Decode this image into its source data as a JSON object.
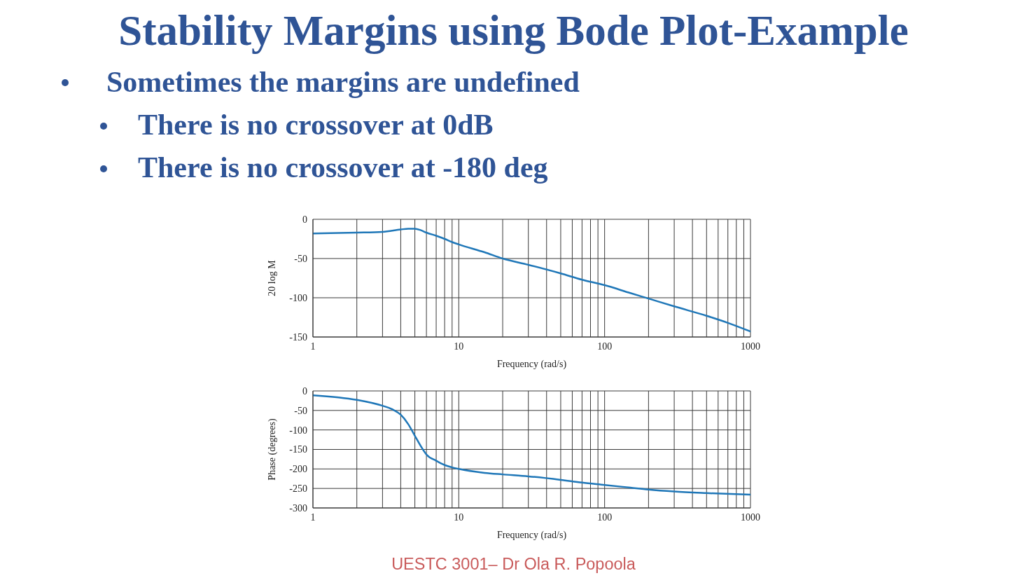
{
  "chart_data": [
    {
      "type": "line",
      "title": "Stability Margins using Bode Plot-Example",
      "annotations": [
        "Sometimes the margins are undefined",
        "There is no crossover at 0dB",
        "There is no crossover at -180 deg"
      ],
      "xlabel": "Frequency (rad/s)",
      "ylabel": "20 log M",
      "log": "x",
      "grid": true,
      "xlim": [
        1,
        1000
      ],
      "xticks": [
        1,
        {
          "value": 2,
          "label": null
        },
        {
          "value": 3,
          "label": null
        },
        {
          "value": 4,
          "label": null
        },
        {
          "value": 5,
          "label": null
        },
        {
          "value": 6,
          "label": null
        },
        {
          "value": 7,
          "label": null
        },
        {
          "value": 8,
          "label": null
        },
        {
          "value": 9,
          "label": null
        },
        10,
        {
          "value": 20,
          "label": null
        },
        {
          "value": 30,
          "label": null
        },
        {
          "value": 40,
          "label": null
        },
        {
          "value": 50,
          "label": null
        },
        {
          "value": 60,
          "label": null
        },
        {
          "value": 70,
          "label": null
        },
        {
          "value": 80,
          "label": null
        },
        {
          "value": 90,
          "label": null
        },
        100,
        {
          "value": 200,
          "label": null
        },
        {
          "value": 300,
          "label": null
        },
        {
          "value": 400,
          "label": null
        },
        {
          "value": 500,
          "label": null
        },
        {
          "value": 600,
          "label": null
        },
        {
          "value": 700,
          "label": null
        },
        {
          "value": 800,
          "label": null
        },
        {
          "value": 900,
          "label": null
        },
        1000
      ],
      "ylim": [
        -150,
        0
      ],
      "yticks": [
        -150,
        -100,
        -50,
        0
      ],
      "x": [
        1,
        2,
        3,
        4,
        4.5,
        5,
        5.5,
        6,
        7,
        8,
        9,
        10,
        15,
        20,
        30,
        50,
        70,
        100,
        150,
        200,
        300,
        500,
        700,
        1000
      ],
      "values": [
        -18,
        -17,
        -16,
        -13,
        -12,
        -12,
        -14,
        -17,
        -21,
        -25,
        -29,
        -32,
        -42,
        -50,
        -58,
        -69,
        -77,
        -84,
        -94,
        -101,
        -111,
        -123,
        -132,
        -143
      ],
      "color": "#1f77b8"
    },
    {
      "type": "line",
      "annotations": [
        "UESTC 3001– Dr Ola R. Popoola"
      ],
      "xlabel": "Frequency (rad/s)",
      "ylabel": "Phase (degrees)",
      "log": "x",
      "grid": true,
      "xlim": [
        1,
        1000
      ],
      "xticks": [
        1,
        {
          "value": 2,
          "label": null
        },
        {
          "value": 3,
          "label": null
        },
        {
          "value": 4,
          "label": null
        },
        {
          "value": 5,
          "label": null
        },
        {
          "value": 6,
          "label": null
        },
        {
          "value": 7,
          "label": null
        },
        {
          "value": 8,
          "label": null
        },
        {
          "value": 9,
          "label": null
        },
        10,
        {
          "value": 20,
          "label": null
        },
        {
          "value": 30,
          "label": null
        },
        {
          "value": 40,
          "label": null
        },
        {
          "value": 50,
          "label": null
        },
        {
          "value": 60,
          "label": null
        },
        {
          "value": 70,
          "label": null
        },
        {
          "value": 80,
          "label": null
        },
        {
          "value": 90,
          "label": null
        },
        100,
        {
          "value": 200,
          "label": null
        },
        {
          "value": 300,
          "label": null
        },
        {
          "value": 400,
          "label": null
        },
        {
          "value": 500,
          "label": null
        },
        {
          "value": 600,
          "label": null
        },
        {
          "value": 700,
          "label": null
        },
        {
          "value": 800,
          "label": null
        },
        {
          "value": 900,
          "label": null
        },
        1000
      ],
      "ylim": [
        -300,
        0
      ],
      "yticks": [
        -300,
        -250,
        -200,
        -150,
        -100,
        -50,
        0
      ],
      "x": [
        1,
        2,
        3,
        3.5,
        4,
        4.5,
        5,
        5.5,
        6,
        7,
        8,
        9,
        10,
        15,
        20,
        30,
        50,
        70,
        100,
        150,
        200,
        300,
        500,
        1000
      ],
      "values": [
        -11,
        -23,
        -38,
        -47,
        -61,
        -85,
        -115,
        -142,
        -163,
        -179,
        -190,
        -196,
        -200,
        -210,
        -214,
        -219,
        -228,
        -235,
        -241,
        -248,
        -253,
        -258,
        -262,
        -266
      ],
      "color": "#1f77b8"
    }
  ]
}
